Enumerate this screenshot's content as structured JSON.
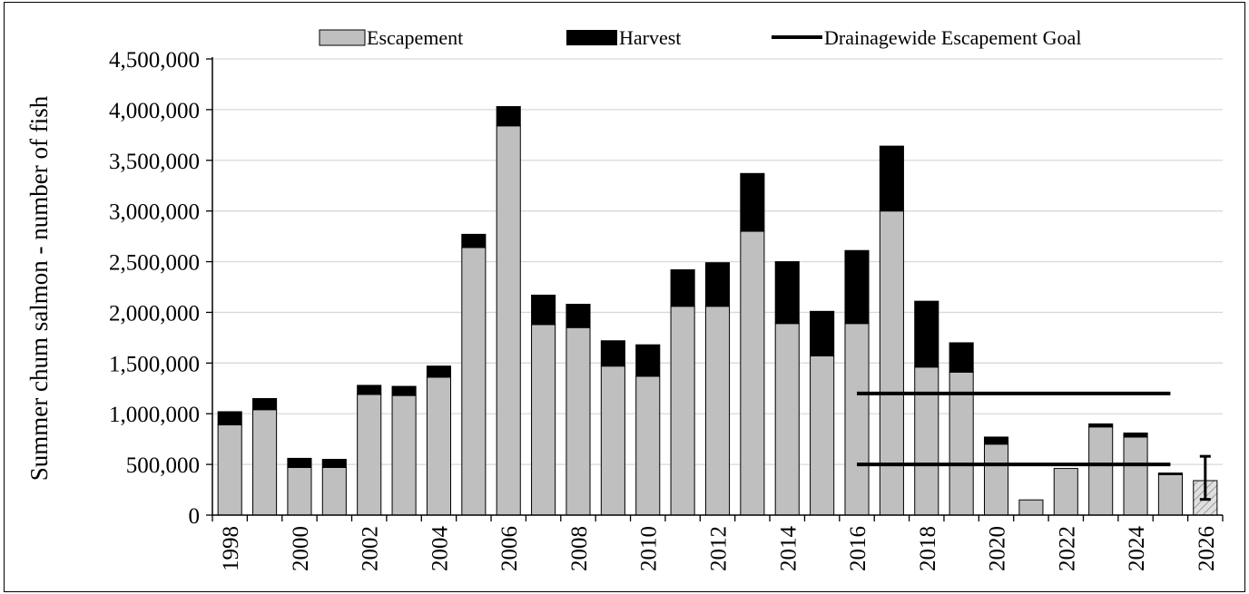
{
  "chart_data": {
    "type": "bar",
    "stacked": true,
    "title": "",
    "xlabel": "",
    "ylabel": "Summer chum salmon - number of fish",
    "ylim": [
      0,
      4500000
    ],
    "yticks": [
      "0",
      "500,000",
      "1,000,000",
      "1,500,000",
      "2,000,000",
      "2,500,000",
      "3,000,000",
      "3,500,000",
      "4,000,000",
      "4,500,000"
    ],
    "ytick_values": [
      0,
      500000,
      1000000,
      1500000,
      2000000,
      2500000,
      3000000,
      3500000,
      4000000,
      4500000
    ],
    "years": [
      1998,
      1999,
      2000,
      2001,
      2002,
      2003,
      2004,
      2005,
      2006,
      2007,
      2008,
      2009,
      2010,
      2011,
      2012,
      2013,
      2014,
      2015,
      2016,
      2017,
      2018,
      2019,
      2020,
      2021,
      2022,
      2023,
      2024,
      2025,
      2026
    ],
    "xtick_labels": [
      "1998",
      "2000",
      "2002",
      "2004",
      "2006",
      "2008",
      "2010",
      "2012",
      "2014",
      "2016",
      "2018",
      "2020",
      "2022",
      "2024",
      "2026"
    ],
    "grid": true,
    "legend_position": "top",
    "series": [
      {
        "name": "Escapement",
        "color": "#bfbfbf",
        "values": [
          890000,
          1040000,
          470000,
          470000,
          1190000,
          1180000,
          1360000,
          2640000,
          3840000,
          1880000,
          1850000,
          1470000,
          1370000,
          2060000,
          2060000,
          2800000,
          1890000,
          1570000,
          1890000,
          3000000,
          1460000,
          1410000,
          700000,
          150000,
          460000,
          870000,
          770000,
          400000,
          340000
        ]
      },
      {
        "name": "Harvest",
        "color": "#000000",
        "values": [
          130000,
          110000,
          90000,
          80000,
          90000,
          90000,
          110000,
          130000,
          190000,
          290000,
          230000,
          250000,
          310000,
          360000,
          430000,
          570000,
          610000,
          440000,
          720000,
          640000,
          650000,
          290000,
          70000,
          0,
          0,
          30000,
          40000,
          15000,
          0
        ]
      }
    ],
    "projection": {
      "year": 2026,
      "value": 340000,
      "error_low": 155000,
      "error_high": 580000,
      "fill": "hatched"
    },
    "goal": {
      "name": "Drainagewide Escapement Goal",
      "color": "#000000",
      "lower": 500000,
      "upper": 1200000,
      "start_year": 2016,
      "end_year": 2025
    }
  }
}
